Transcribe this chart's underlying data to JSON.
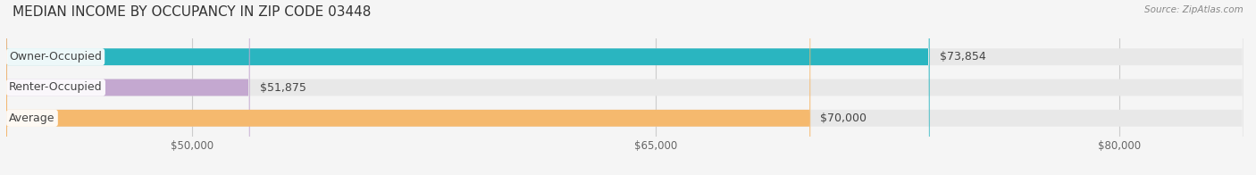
{
  "title": "MEDIAN INCOME BY OCCUPANCY IN ZIP CODE 03448",
  "source": "Source: ZipAtlas.com",
  "categories": [
    "Owner-Occupied",
    "Renter-Occupied",
    "Average"
  ],
  "values": [
    73854,
    51875,
    70000
  ],
  "bar_colors": [
    "#2ab5c0",
    "#c4a8d0",
    "#f5b96e"
  ],
  "value_labels": [
    "$73,854",
    "$51,875",
    "$70,000"
  ],
  "xlim_min": 44000,
  "xlim_max": 84000,
  "xticks": [
    50000,
    65000,
    80000
  ],
  "xtick_labels": [
    "$50,000",
    "$65,000",
    "$80,000"
  ],
  "bar_height": 0.55,
  "bg_color": "#f5f5f5",
  "bar_bg_color": "#e8e8e8",
  "title_fontsize": 11,
  "label_fontsize": 9,
  "tick_fontsize": 8.5
}
